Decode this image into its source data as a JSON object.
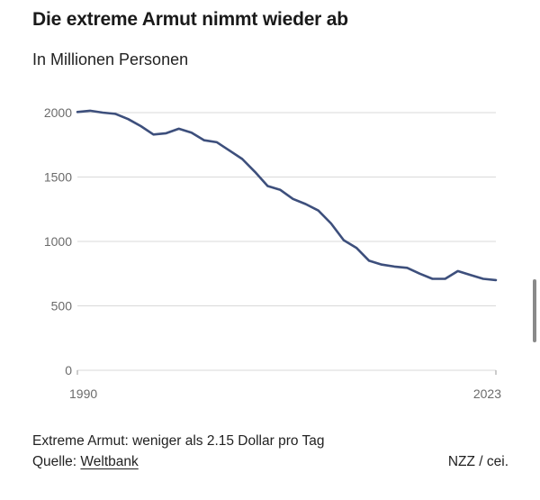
{
  "header": {
    "title": "Die extreme Armut nimmt wieder ab",
    "subtitle": "In Millionen Personen"
  },
  "footer": {
    "note": "Extreme Armut: weniger als 2.15 Dollar pro Tag",
    "source_prefix": "Quelle: ",
    "source_link": "Weltbank",
    "credit": "NZZ / cei."
  },
  "colors": {
    "line": "#3d4f7c",
    "grid": "#d9d9d9",
    "tick_text": "#6b6b6b"
  },
  "chart_data": {
    "type": "line",
    "title": "Die extreme Armut nimmt wieder ab",
    "subtitle": "In Millionen Personen",
    "xlabel": "",
    "ylabel": "",
    "xlim": [
      1990,
      2023
    ],
    "ylim": [
      0,
      2000
    ],
    "x_ticks": [
      "1990",
      "2023"
    ],
    "y_ticks": [
      0,
      500,
      1000,
      1500,
      2000
    ],
    "grid": true,
    "x": [
      1990,
      1991,
      1992,
      1993,
      1994,
      1995,
      1996,
      1997,
      1998,
      1999,
      2000,
      2001,
      2002,
      2003,
      2004,
      2005,
      2006,
      2007,
      2008,
      2009,
      2010,
      2011,
      2012,
      2013,
      2014,
      2015,
      2016,
      2017,
      2018,
      2019,
      2020,
      2021,
      2022,
      2023
    ],
    "values": [
      2005,
      2015,
      2000,
      1990,
      1950,
      1895,
      1830,
      1840,
      1875,
      1845,
      1785,
      1770,
      1705,
      1640,
      1540,
      1430,
      1400,
      1330,
      1290,
      1240,
      1140,
      1010,
      950,
      850,
      820,
      805,
      795,
      750,
      710,
      710,
      770,
      740,
      710,
      700
    ]
  }
}
